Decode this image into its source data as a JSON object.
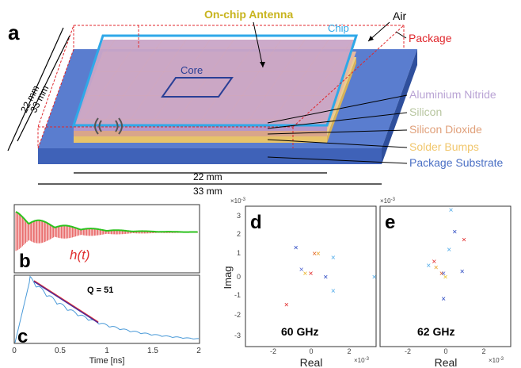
{
  "figure": {
    "panel_a": {
      "letter": "a",
      "labels": {
        "antenna": "On-chip Antenna",
        "chip": "Chip",
        "air": "Air",
        "package": "Package",
        "core": "Core",
        "aln": "Aluminium Nitride",
        "silicon": "Silicon",
        "sio2": "Silicon Dioxide",
        "bumps": "Solder Bumps",
        "substrate": "Package Substrate"
      },
      "dims": {
        "left_inner": "22 mm",
        "left_outer": "33 mm",
        "bottom_inner": "22 mm",
        "bottom_outer": "33 mm"
      },
      "colors": {
        "chip_outline": "#2fa8e8",
        "package_outline": "#e0262b",
        "substrate": "#4a6fc4",
        "chip_top": "#c8a6c4",
        "bumps": "#e9c46a",
        "antenna_text": "#c8b41e",
        "aln_text": "#b9a3d4",
        "silicon_text": "#b8c6a0",
        "sio2_text": "#e0a07a",
        "bumps_text": "#f1c76e",
        "substrate_text": "#4a6fc4"
      }
    },
    "panel_b": {
      "letter": "b",
      "label": "h(t)",
      "colors": {
        "impulse": "#e03030",
        "envelope": "#2cc21e"
      }
    },
    "panel_c": {
      "letter": "c",
      "annotation": "Q = 51",
      "xlabel": "Time [ns]",
      "xticks": [
        "0",
        "0.5",
        "1",
        "1.5",
        "2"
      ]
    },
    "panel_d": {
      "letter": "d",
      "freq": "60 GHz",
      "ylabel": "Imag",
      "xlabel": "Real",
      "yexp": "×10",
      "yexp_sup": "-3",
      "xexp": "×10",
      "xexp_sup": "-3",
      "yticks": [
        "3",
        "2",
        "1",
        "0",
        "-1",
        "-2",
        "-3"
      ],
      "xticks": [
        "-2",
        "0",
        "2"
      ]
    },
    "panel_e": {
      "letter": "e",
      "freq": "62 GHz",
      "xlabel": "Real",
      "yexp": "×10",
      "yexp_sup": "-3",
      "xexp": "×10",
      "xexp_sup": "-3",
      "xticks": [
        "-2",
        "0",
        "2"
      ]
    }
  },
  "chart_data": [
    {
      "type": "line",
      "title": "",
      "xlabel": "Time [ns]",
      "ylabel": "",
      "xlim": [
        0,
        2
      ],
      "annotation": "Q = 51",
      "series": [
        {
          "values": []
        }
      ]
    },
    {
      "type": "scatter",
      "title": "60 GHz",
      "xlabel": "Real",
      "ylabel": "Imag",
      "xlim": [
        -3.5,
        3.5
      ],
      "ylim": [
        -3.5,
        3.6
      ],
      "points": [
        {
          "x": -0.8,
          "y": 1.5,
          "color": "#1f3fbf"
        },
        {
          "x": 0.2,
          "y": 1.2,
          "color": "#e05a1a"
        },
        {
          "x": 0.4,
          "y": 1.2,
          "color": "#e8a020"
        },
        {
          "x": 1.2,
          "y": 1.0,
          "color": "#4aa8e8"
        },
        {
          "x": -0.5,
          "y": 0.4,
          "color": "#4a5fd0"
        },
        {
          "x": 0.0,
          "y": 0.2,
          "color": "#e02020"
        },
        {
          "x": -0.3,
          "y": 0.2,
          "color": "#e8b020"
        },
        {
          "x": 0.8,
          "y": 0.0,
          "color": "#1f3fbf"
        },
        {
          "x": 3.4,
          "y": 0.0,
          "color": "#4aa8e8"
        },
        {
          "x": 1.2,
          "y": -0.7,
          "color": "#4aa8e8"
        },
        {
          "x": -1.3,
          "y": -1.4,
          "color": "#e02020"
        }
      ]
    },
    {
      "type": "scatter",
      "title": "62 GHz",
      "xlabel": "Real",
      "ylabel": "",
      "xlim": [
        -3.5,
        3.5
      ],
      "ylim": [
        -3.5,
        3.6
      ],
      "points": [
        {
          "x": 0.3,
          "y": 3.4,
          "color": "#4aa8e8"
        },
        {
          "x": 0.5,
          "y": 2.3,
          "color": "#1f3fbf"
        },
        {
          "x": 1.0,
          "y": 1.9,
          "color": "#e02020"
        },
        {
          "x": 0.2,
          "y": 1.4,
          "color": "#4aa8e8"
        },
        {
          "x": -0.6,
          "y": 0.8,
          "color": "#e02020"
        },
        {
          "x": -0.9,
          "y": 0.6,
          "color": "#4aa8e8"
        },
        {
          "x": -0.5,
          "y": 0.5,
          "color": "#e8a020"
        },
        {
          "x": 0.9,
          "y": 0.3,
          "color": "#1f3fbf"
        },
        {
          "x": -0.2,
          "y": 0.2,
          "color": "#e05a1a"
        },
        {
          "x": 0.0,
          "y": 0.0,
          "color": "#e8c020"
        },
        {
          "x": -0.1,
          "y": 0.2,
          "color": "#4a5fd0"
        },
        {
          "x": -0.1,
          "y": -1.1,
          "color": "#1f3fbf"
        }
      ]
    }
  ]
}
